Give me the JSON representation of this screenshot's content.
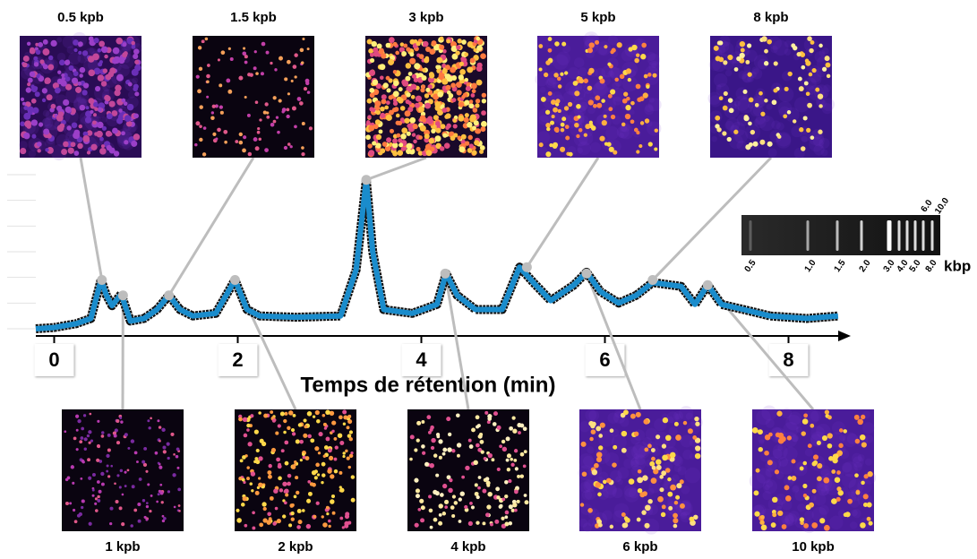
{
  "chart_data": {
    "type": "line",
    "x_label": "Temps de rétention (min)",
    "xlim": [
      -0.2,
      8.6
    ],
    "xticks": [
      0,
      2,
      4,
      6,
      8
    ],
    "ylim": [
      0,
      6
    ],
    "yticks": [
      0,
      1,
      2,
      3,
      4,
      5,
      6
    ],
    "series": [
      {
        "color": "#1a8ccc",
        "x": [
          -0.2,
          0,
          0.24,
          0.4,
          0.51,
          0.57,
          0.63,
          0.73,
          0.83,
          0.98,
          1.12,
          1.25,
          1.37,
          1.51,
          1.76,
          1.97,
          2.1,
          2.24,
          2.63,
          3.12,
          3.29,
          3.4,
          3.47,
          3.59,
          3.9,
          4.17,
          4.27,
          4.39,
          4.59,
          4.88,
          5.07,
          5.22,
          5.41,
          5.66,
          5.8,
          5.95,
          6.15,
          6.34,
          6.52,
          6.83,
          6.98,
          7.12,
          7.27,
          7.51,
          7.8,
          8.2,
          8.54
        ],
        "values": [
          0,
          0.05,
          0.2,
          0.4,
          1.9,
          1.3,
          0.9,
          1.35,
          0.3,
          0.4,
          0.75,
          1.3,
          0.75,
          0.5,
          0.6,
          1.9,
          0.75,
          0.5,
          0.45,
          0.5,
          2.3,
          5.8,
          3.0,
          0.75,
          0.6,
          0.95,
          2.15,
          1.3,
          0.75,
          0.75,
          2.4,
          1.8,
          1.1,
          1.7,
          2.2,
          1.45,
          1.0,
          1.3,
          1.8,
          1.65,
          0.95,
          1.7,
          0.95,
          0.75,
          0.5,
          0.4,
          0.5
        ]
      }
    ],
    "annotations": [
      {
        "label": "0.5 kpb",
        "x": 0.52,
        "y": 1.9,
        "position": "top"
      },
      {
        "label": "1 kpb",
        "x": 0.75,
        "y": 1.3,
        "position": "bottom"
      },
      {
        "label": "1.5 kpb",
        "x": 1.25,
        "y": 1.3,
        "position": "top"
      },
      {
        "label": "2 kpb",
        "x": 1.97,
        "y": 1.9,
        "position": "bottom"
      },
      {
        "label": "3 kpb",
        "x": 3.4,
        "y": 5.8,
        "position": "top"
      },
      {
        "label": "4 kpb",
        "x": 4.26,
        "y": 2.15,
        "position": "bottom"
      },
      {
        "label": "5 kpb",
        "x": 5.15,
        "y": 2.4,
        "position": "top"
      },
      {
        "label": "6 kpb",
        "x": 5.8,
        "y": 2.15,
        "position": "bottom"
      },
      {
        "label": "8 kpb",
        "x": 6.52,
        "y": 1.9,
        "position": "top"
      },
      {
        "label": "10 kpb",
        "x": 7.12,
        "y": 1.7,
        "position": "bottom"
      }
    ],
    "gel": {
      "unit": "kbp",
      "bands": [
        "0.5",
        "1.0",
        "1.5",
        "2.0",
        "3.0",
        "4.0",
        "5.0",
        "6.0",
        "8.0",
        "10.0"
      ]
    }
  }
}
